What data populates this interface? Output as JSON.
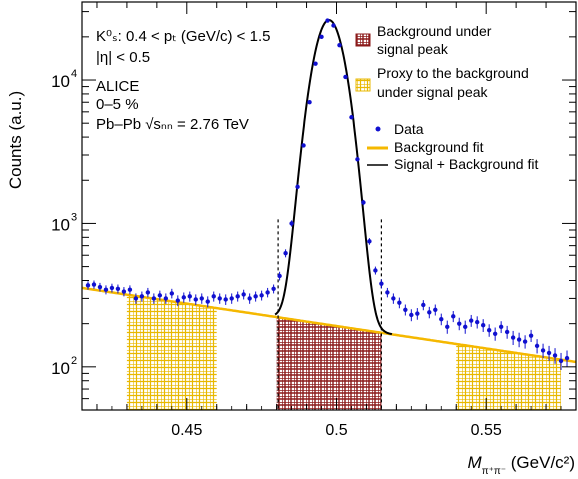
{
  "chart_data": {
    "type": "scatter",
    "title": "",
    "xlabel_parts": {
      "main": "M",
      "sub": "π⁺π⁻",
      "unit": " (GeV/c²)"
    },
    "ylabel": "Counts (a.u.)",
    "xlim": [
      0.415,
      0.58
    ],
    "ylim": [
      50,
      35000
    ],
    "y_scale": "log",
    "x_ticks": [
      0.45,
      0.5,
      0.55
    ],
    "x_tick_labels": [
      "0.45",
      "0.5",
      "0.55"
    ],
    "y_ticks": [
      100,
      1000,
      10000
    ],
    "y_tick_labels": [
      "10",
      "10",
      "10"
    ],
    "y_tick_exps": [
      "2",
      "3",
      "4"
    ],
    "info_text": {
      "line1": "K⁰ₛ: 0.4 < pₜ (GeV/c) < 1.5",
      "line2": "|η| < 0.5",
      "line3": "ALICE",
      "line4": "0–5 %",
      "line5": "Pb–Pb √sₙₙ = 2.76 TeV"
    },
    "legend": {
      "bg_under_peak": "Background under signal peak",
      "bg_under_peak_l1": "Background under",
      "bg_under_peak_l2": "signal peak",
      "proxy_l1": "Proxy to the background",
      "proxy_l2": "under signal peak",
      "data": "Data",
      "bg_fit": "Background fit",
      "sig_bg_fit": "Signal + Background fit"
    },
    "colors": {
      "data": "#1010d0",
      "bg_fit": "#f5b800",
      "sig_bg_fit": "#000000",
      "signal_region": "#8b1a1a",
      "sideband": "#e8b800"
    },
    "signal_region": [
      0.48,
      0.515
    ],
    "sidebands": [
      [
        0.43,
        0.46
      ],
      [
        0.54,
        0.575
      ]
    ],
    "peak": {
      "mean": 0.4975,
      "sigma": 0.0045,
      "amplitude": 26000
    },
    "background": {
      "a": 355,
      "b": -7.2,
      "x0": 0.415
    },
    "data_points": {
      "x": [
        0.417,
        0.419,
        0.421,
        0.423,
        0.425,
        0.427,
        0.429,
        0.431,
        0.433,
        0.435,
        0.437,
        0.439,
        0.441,
        0.443,
        0.445,
        0.447,
        0.449,
        0.451,
        0.453,
        0.455,
        0.457,
        0.459,
        0.461,
        0.463,
        0.465,
        0.467,
        0.469,
        0.471,
        0.473,
        0.475,
        0.477,
        0.479,
        0.481,
        0.483,
        0.485,
        0.487,
        0.489,
        0.491,
        0.493,
        0.495,
        0.497,
        0.499,
        0.501,
        0.503,
        0.505,
        0.507,
        0.509,
        0.511,
        0.513,
        0.515,
        0.517,
        0.519,
        0.521,
        0.523,
        0.525,
        0.527,
        0.529,
        0.531,
        0.533,
        0.535,
        0.537,
        0.539,
        0.541,
        0.543,
        0.545,
        0.547,
        0.549,
        0.551,
        0.553,
        0.555,
        0.557,
        0.559,
        0.561,
        0.563,
        0.565,
        0.567,
        0.569,
        0.571,
        0.573,
        0.575,
        0.577
      ],
      "y": [
        370,
        375,
        360,
        345,
        355,
        350,
        335,
        345,
        300,
        310,
        330,
        300,
        315,
        300,
        325,
        290,
        305,
        310,
        295,
        300,
        285,
        310,
        300,
        295,
        300,
        310,
        320,
        300,
        310,
        315,
        330,
        350,
        430,
        620,
        1000,
        1800,
        3500,
        7000,
        13000,
        20000,
        26000,
        24000,
        17500,
        10500,
        5500,
        2800,
        1400,
        750,
        470,
        380,
        330,
        300,
        280,
        250,
        230,
        235,
        270,
        240,
        250,
        215,
        190,
        225,
        200,
        190,
        210,
        205,
        195,
        180,
        170,
        190,
        175,
        160,
        155,
        150,
        165,
        140,
        130,
        125,
        120,
        110,
        115
      ],
      "err": [
        25,
        25,
        25,
        25,
        25,
        25,
        25,
        25,
        25,
        25,
        25,
        25,
        25,
        25,
        25,
        25,
        25,
        25,
        25,
        25,
        25,
        25,
        25,
        25,
        25,
        25,
        25,
        25,
        25,
        25,
        25,
        25,
        30,
        40,
        50,
        70,
        100,
        150,
        200,
        250,
        300,
        300,
        250,
        200,
        140,
        90,
        60,
        40,
        30,
        28,
        25,
        25,
        24,
        22,
        22,
        22,
        22,
        22,
        22,
        20,
        20,
        20,
        20,
        20,
        20,
        20,
        20,
        18,
        18,
        18,
        18,
        18,
        18,
        16,
        16,
        16,
        15,
        15,
        15,
        15,
        15
      ]
    },
    "dashed_lines_x": [
      0.4805,
      0.515
    ],
    "grid": false,
    "legend_position": "top-right"
  }
}
